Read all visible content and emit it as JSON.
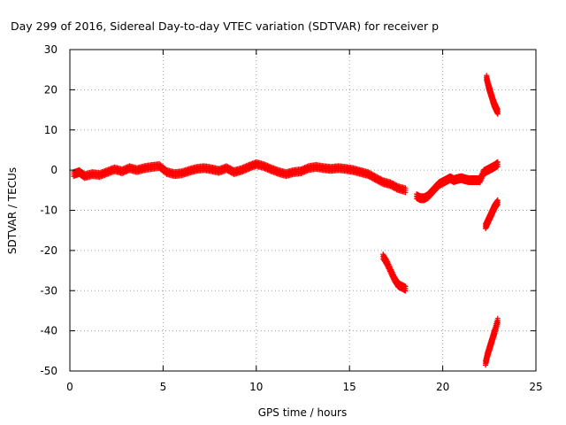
{
  "chart_data": {
    "type": "scatter",
    "title": "Day 299 of 2016, Sidereal Day-to-day VTEC variation (SDTVAR) for receiver p",
    "xlabel": "GPS time / hours",
    "ylabel": "SDTVAR / TECUs",
    "xlim": [
      0,
      25
    ],
    "ylim": [
      -50,
      30
    ],
    "xticks": [
      "0",
      "5",
      "10",
      "15",
      "20",
      "25"
    ],
    "yticks": [
      "30",
      "20",
      "10",
      "0",
      "-10",
      "-20",
      "-30",
      "-40",
      "-50"
    ],
    "grid": true,
    "marker": "+",
    "color": "#ff0000",
    "series": [
      {
        "x": [
          0.2,
          0.5,
          0.8,
          1.2,
          1.6,
          2.0,
          2.4,
          2.8,
          3.2,
          3.6,
          4.0,
          4.4,
          4.8,
          5.2,
          5.6,
          6.0,
          6.4,
          6.8,
          7.2,
          7.6,
          8.0,
          8.4,
          8.8,
          9.2,
          9.6,
          10.0,
          10.4,
          10.8,
          11.2,
          11.6,
          12.0,
          12.4,
          12.8,
          13.2,
          13.6,
          14.0,
          14.4,
          14.8,
          15.2,
          15.6,
          16.0,
          16.4,
          16.8,
          17.2,
          17.6,
          18.0
        ],
        "y": [
          -1.0,
          -0.5,
          -1.5,
          -1.0,
          -1.2,
          -0.5,
          0.2,
          -0.3,
          0.5,
          0.0,
          0.5,
          0.8,
          1.0,
          -0.5,
          -1.0,
          -0.8,
          -0.2,
          0.3,
          0.5,
          0.2,
          -0.2,
          0.5,
          -0.5,
          0.0,
          0.8,
          1.5,
          1.0,
          0.2,
          -0.5,
          -1.0,
          -0.5,
          -0.3,
          0.5,
          0.8,
          0.5,
          0.3,
          0.5,
          0.3,
          0.0,
          -0.5,
          -1.0,
          -2.0,
          -3.0,
          -3.5,
          -4.5,
          -5.0
        ]
      },
      {
        "x": [
          18.6,
          18.8,
          19.0,
          19.2,
          19.4,
          19.6,
          19.8,
          20.0,
          20.2,
          20.4,
          20.6,
          20.8,
          21.0,
          21.2,
          21.4,
          21.6,
          21.8,
          22.0,
          22.2,
          22.4,
          22.6,
          22.8,
          22.95
        ],
        "y": [
          -6.5,
          -7.0,
          -7.0,
          -6.5,
          -5.5,
          -4.5,
          -3.5,
          -3.0,
          -2.5,
          -2.0,
          -2.5,
          -2.2,
          -2.0,
          -2.3,
          -2.5,
          -2.5,
          -2.5,
          -2.5,
          -0.5,
          0.0,
          0.5,
          1.0,
          1.5
        ]
      },
      {
        "x": [
          16.8,
          17.0,
          17.2,
          17.4,
          17.6,
          17.8,
          18.0
        ],
        "y": [
          -21.5,
          -23.0,
          -25.0,
          -27.0,
          -28.5,
          -29.0,
          -29.5
        ]
      },
      {
        "x": [
          22.35,
          22.45,
          22.55,
          22.65,
          22.75,
          22.85,
          22.95
        ],
        "y": [
          23.0,
          21.0,
          19.5,
          18.0,
          16.5,
          15.5,
          14.5
        ]
      },
      {
        "x": [
          22.3,
          22.4,
          22.5,
          22.6,
          22.7,
          22.8,
          22.95
        ],
        "y": [
          -14.0,
          -13.0,
          -12.0,
          -11.0,
          -10.0,
          -9.0,
          -8.0
        ]
      },
      {
        "x": [
          22.3,
          22.4,
          22.5,
          22.6,
          22.7,
          22.8,
          22.95
        ],
        "y": [
          -48.0,
          -46.0,
          -44.5,
          -43.0,
          -41.5,
          -40.0,
          -37.5
        ]
      }
    ]
  }
}
